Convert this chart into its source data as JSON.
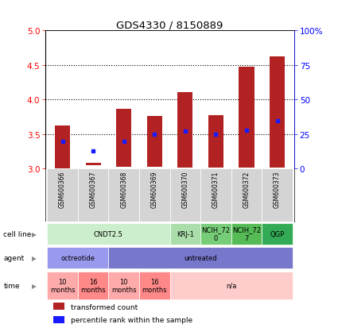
{
  "title": "GDS4330 / 8150889",
  "samples": [
    "GSM600366",
    "GSM600367",
    "GSM600368",
    "GSM600369",
    "GSM600370",
    "GSM600371",
    "GSM600372",
    "GSM600373"
  ],
  "bar_bottom": [
    3.0,
    3.05,
    3.03,
    3.03,
    3.02,
    3.02,
    3.02,
    3.02
  ],
  "bar_top": [
    3.62,
    3.08,
    3.87,
    3.76,
    4.11,
    3.77,
    4.47,
    4.63
  ],
  "percentile": [
    20,
    13,
    20,
    25,
    27,
    25,
    28,
    35
  ],
  "ylim": [
    3.0,
    5.0
  ],
  "yticks_left": [
    3.0,
    3.5,
    4.0,
    4.5,
    5.0
  ],
  "yticks_right": [
    0,
    25,
    50,
    75,
    100
  ],
  "bar_color": "#b22222",
  "dot_color": "#1a1aff",
  "cell_line_groups": [
    {
      "label": "CNDT2.5",
      "span": [
        0,
        4
      ],
      "color": "#cceecc"
    },
    {
      "label": "KRJ-1",
      "span": [
        4,
        5
      ],
      "color": "#aaddaa"
    },
    {
      "label": "NCIH_72\n0",
      "span": [
        5,
        6
      ],
      "color": "#77cc77"
    },
    {
      "label": "NCIH_72\n7",
      "span": [
        6,
        7
      ],
      "color": "#55bb55"
    },
    {
      "label": "QGP",
      "span": [
        7,
        8
      ],
      "color": "#33aa55"
    }
  ],
  "agent_groups": [
    {
      "label": "octreotide",
      "span": [
        0,
        2
      ],
      "color": "#9999ee"
    },
    {
      "label": "untreated",
      "span": [
        2,
        8
      ],
      "color": "#7777cc"
    }
  ],
  "time_groups": [
    {
      "label": "10\nmonths",
      "span": [
        0,
        1
      ],
      "color": "#ffaaaa"
    },
    {
      "label": "16\nmonths",
      "span": [
        1,
        2
      ],
      "color": "#ff8888"
    },
    {
      "label": "10\nmonths",
      "span": [
        2,
        3
      ],
      "color": "#ffaaaa"
    },
    {
      "label": "16\nmonths",
      "span": [
        3,
        4
      ],
      "color": "#ff8888"
    },
    {
      "label": "n/a",
      "span": [
        4,
        8
      ],
      "color": "#ffcccc"
    }
  ],
  "row_labels": [
    "cell line",
    "agent",
    "time"
  ],
  "legend_items": [
    "transformed count",
    "percentile rank within the sample"
  ],
  "legend_colors": [
    "#b22222",
    "#1a1aff"
  ]
}
